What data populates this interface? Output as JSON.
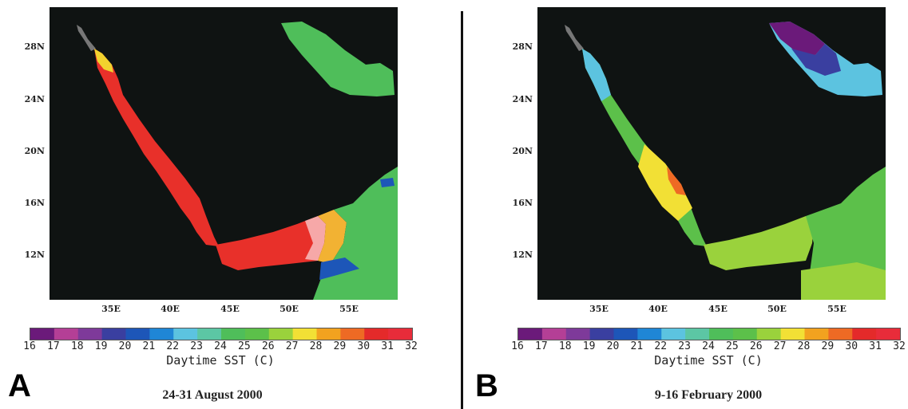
{
  "panels": [
    {
      "id": "A",
      "letter": "A",
      "date": "24-31 August 2000",
      "colorbar_title": "Daytime SST (C)"
    },
    {
      "id": "B",
      "letter": "B",
      "date": "9-16 February 2000",
      "colorbar_title": "Daytime SST (C)"
    }
  ],
  "lat_labels": [
    "28N",
    "24N",
    "20N",
    "16N",
    "12N"
  ],
  "lon_labels": [
    "35E",
    "40E",
    "45E",
    "50E",
    "55E"
  ],
  "colorbar_ticks": [
    "16",
    "17",
    "18",
    "19",
    "20",
    "21",
    "22",
    "23",
    "24",
    "25",
    "26",
    "27",
    "28",
    "29",
    "30",
    "31",
    "32"
  ],
  "colorbar_colors": [
    "#6b1a7a",
    "#b43f96",
    "#7e3a9a",
    "#3a3fa0",
    "#1d56b8",
    "#1f86d6",
    "#5cc3e0",
    "#5cc6a4",
    "#4fbe5a",
    "#5cc04a",
    "#9ad23c",
    "#f2e035",
    "#f2a21f",
    "#ee6a24",
    "#e42a2a",
    "#e82c3a",
    "#f6c0c6"
  ],
  "land_color": "#0f1312"
}
